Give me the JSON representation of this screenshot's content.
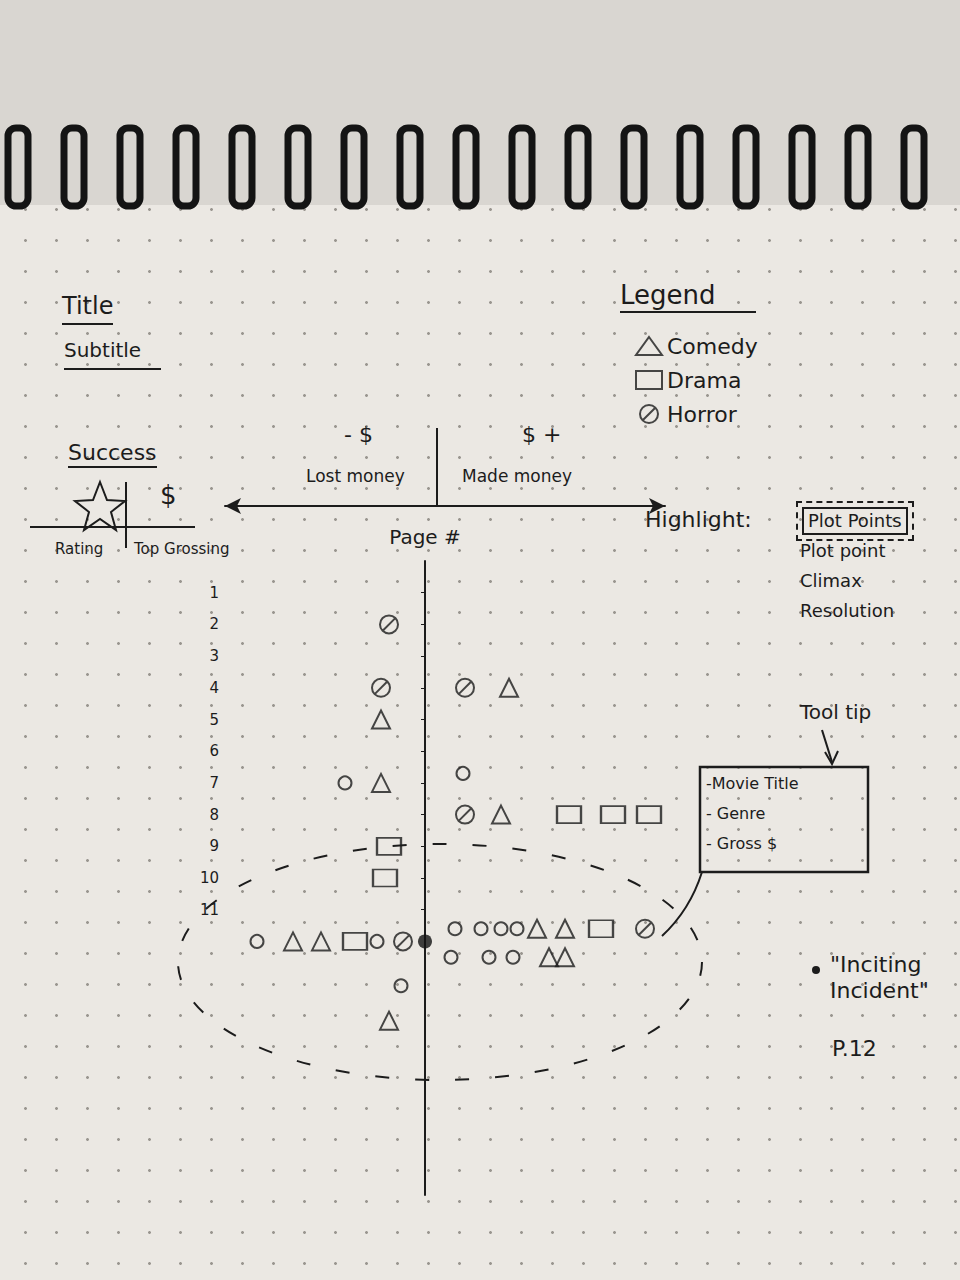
{
  "chart_data": {
    "type": "scatter",
    "title": "Title",
    "subtitle": "Subtitle",
    "ylabel": "Page #",
    "xlabel_left": "Lost money",
    "xlabel_right": "Made money",
    "x_sign_left": "- $",
    "x_sign_right": "$ +",
    "xlim": [
      -5,
      6
    ],
    "ylim": [
      0,
      20
    ],
    "yticks": [
      1,
      2,
      3,
      4,
      5,
      6,
      7,
      8,
      9,
      10,
      11
    ],
    "tick_labels": "y",
    "legend": "top right",
    "legend_title": "Legend",
    "series": [
      {
        "name": "Comedy",
        "marker": "triangle",
        "color": "#1c1c1c",
        "x": [
          2.1,
          -1.1,
          -1.1,
          1.9,
          -3.3,
          -2.6,
          2.8,
          3.5,
          3.1,
          3.5,
          -0.9
        ],
        "values": [
          4,
          5,
          7,
          8,
          12,
          12,
          11.6,
          11.6,
          12.5,
          12.5,
          14.5
        ]
      },
      {
        "name": "Drama",
        "marker": "rect",
        "color": "#1c1c1c",
        "x": [
          3.6,
          4.7,
          5.6,
          -0.9,
          -1.0,
          -1.75,
          4.4
        ],
        "values": [
          8,
          8,
          8,
          9,
          10,
          12,
          11.6
        ]
      },
      {
        "name": "Horror",
        "marker": "slashed-circle",
        "color": "#1c1c1c",
        "x": [
          -0.9,
          -1.1,
          1.0,
          1.0,
          5.5,
          -0.55
        ],
        "values": [
          2,
          4,
          4,
          8,
          11.6,
          12
        ]
      },
      {
        "marker": "circle",
        "color": "#1c1c1c",
        "x": [
          -2.0,
          0.95,
          -4.2,
          -1.2,
          0.75,
          1.4,
          1.9,
          2.3,
          0.65,
          1.6,
          2.2,
          -0.6
        ],
        "values": [
          7,
          6.7,
          12,
          12,
          11.6,
          11.6,
          11.6,
          11.6,
          12.5,
          12.5,
          12.5,
          13.4
        ]
      }
    ],
    "inciting_incident": {
      "x": 0,
      "y": 12,
      "label": "\"Inciting Incident\"",
      "page_label": "P.12"
    },
    "success": {
      "title": "Success",
      "symbol": "$",
      "labels": [
        "Rating",
        "Top Grossing"
      ]
    },
    "highlight": {
      "label": "Highlight:",
      "items": [
        "Plot Points",
        "Plot point",
        "Climax",
        "Resolution"
      ]
    },
    "tooltip": {
      "label": "Tool tip",
      "lines": [
        "-Movie Title",
        "- Genre",
        "- Gross $"
      ]
    }
  }
}
